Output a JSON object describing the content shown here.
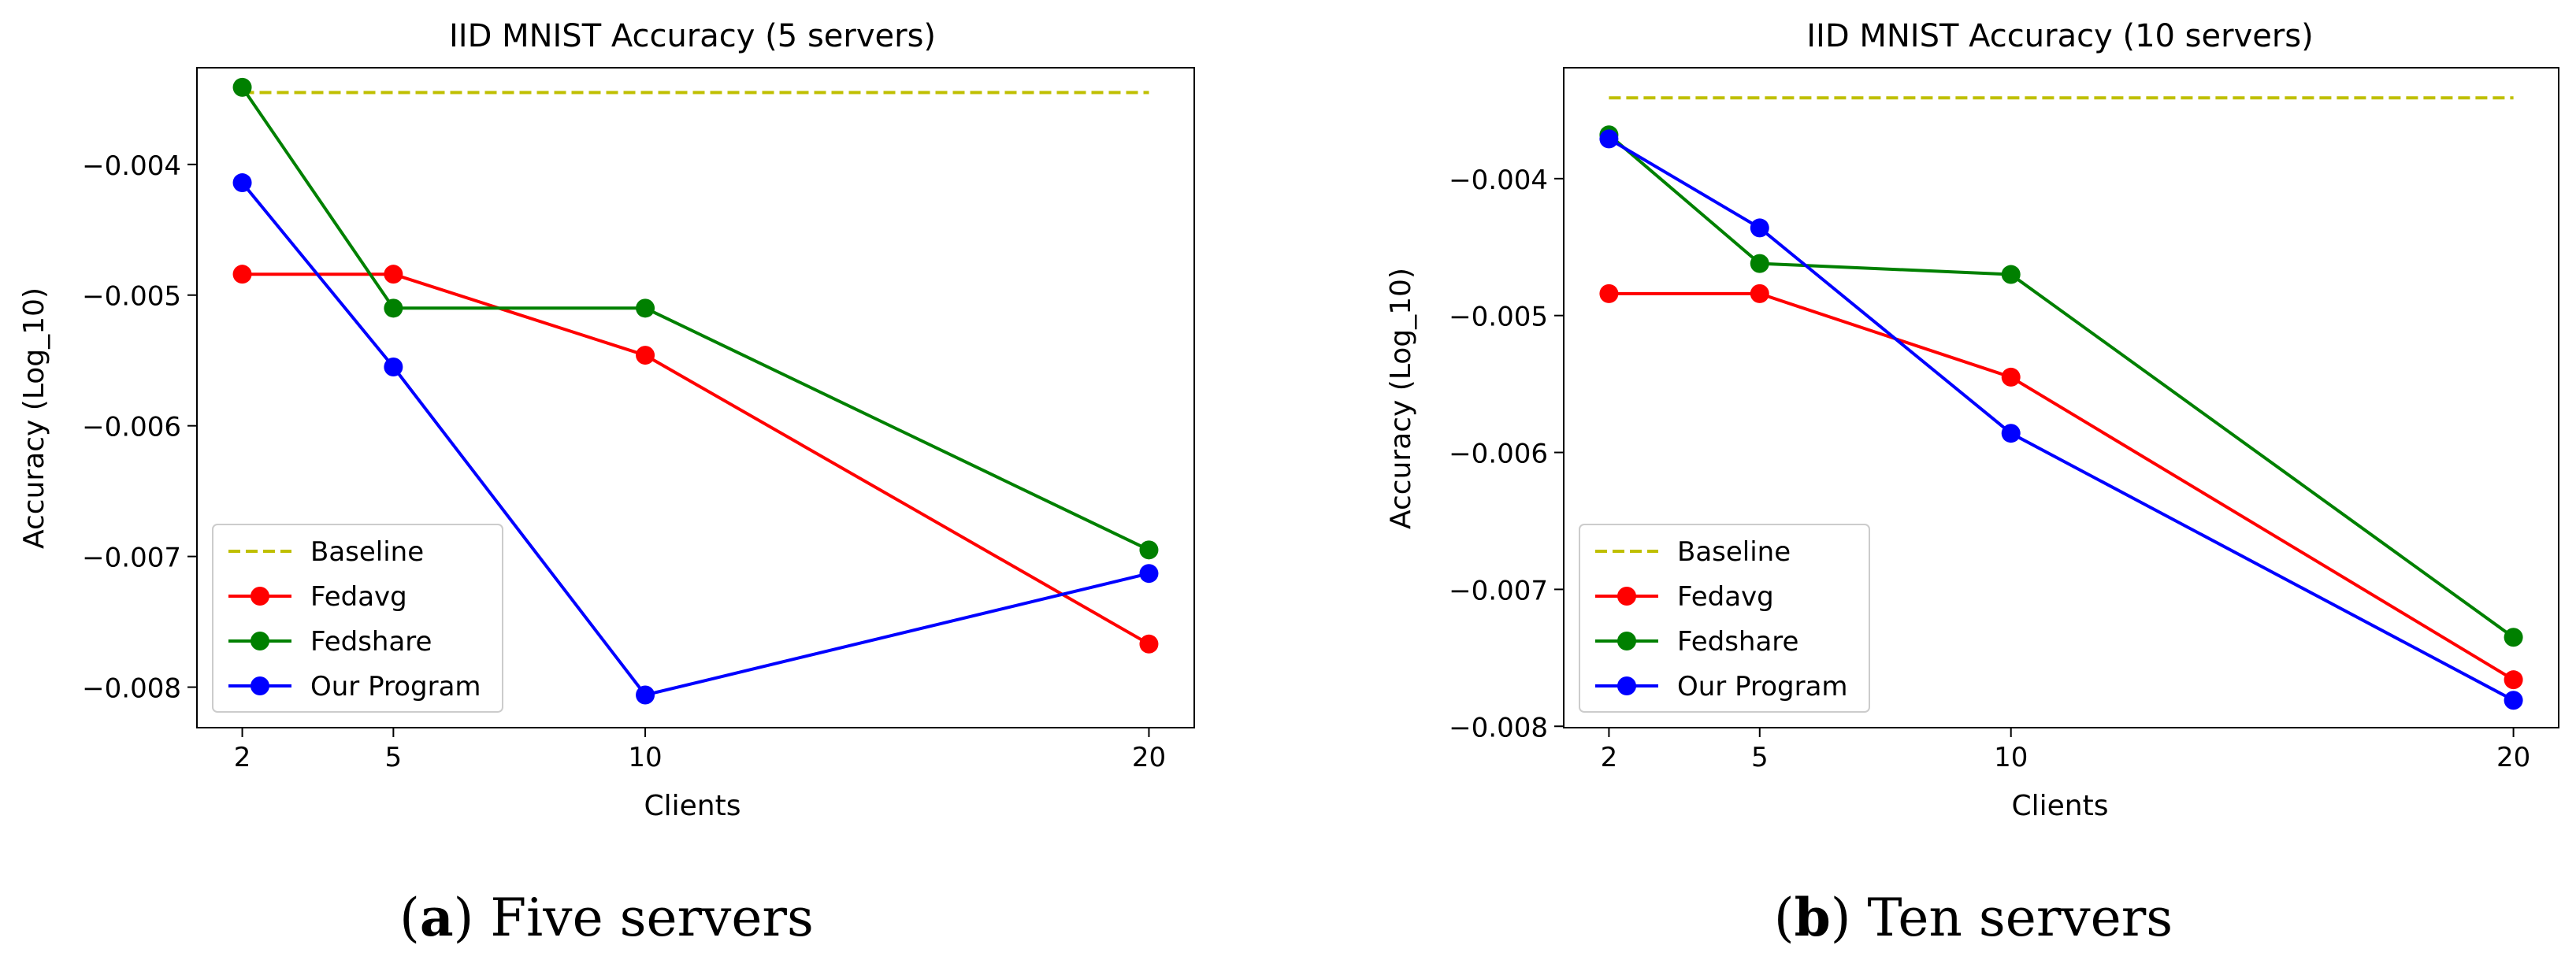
{
  "colors": {
    "baseline": "#bfbf00",
    "fedavg": "#ff0000",
    "fedshare": "#008000",
    "our_program": "#0000ff"
  },
  "chart_data": [
    {
      "type": "line",
      "title": "IID MNIST Accuracy (5 servers)",
      "xlabel": "Clients",
      "ylabel": "Accuracy (Log_10)",
      "x": [
        2,
        5,
        10,
        20
      ],
      "xticks": [
        2,
        5,
        10,
        20
      ],
      "xtick_labels": [
        "2",
        "5",
        "10",
        "20"
      ],
      "xlim": [
        1.1,
        20.9
      ],
      "yticks": [
        -0.008,
        -0.007,
        -0.006,
        -0.005,
        -0.004
      ],
      "ytick_labels": [
        "−0.008",
        "−0.007",
        "−0.006",
        "−0.005",
        "−0.004"
      ],
      "ylim": [
        -0.00831,
        -0.00326
      ],
      "grid": false,
      "legend_position": "lower-left",
      "series": [
        {
          "name": "Baseline",
          "key": "baseline",
          "values": [
            -0.00345,
            -0.00345,
            -0.00345,
            -0.00345
          ],
          "dashed": true,
          "markers": false
        },
        {
          "name": "Fedavg",
          "key": "fedavg",
          "values": [
            -0.00484,
            -0.00484,
            -0.00546,
            -0.00767
          ],
          "dashed": false,
          "markers": true
        },
        {
          "name": "Fedshare",
          "key": "fedshare",
          "values": [
            -0.00341,
            -0.0051,
            -0.0051,
            -0.00695
          ],
          "dashed": false,
          "markers": true
        },
        {
          "name": "Our Program",
          "key": "our_program",
          "values": [
            -0.00414,
            -0.00555,
            -0.00806,
            -0.00713
          ],
          "dashed": false,
          "markers": true
        }
      ]
    },
    {
      "type": "line",
      "title": "IID MNIST Accuracy (10 servers)",
      "xlabel": "Clients",
      "ylabel": "Accuracy (Log_10)",
      "x": [
        2,
        5,
        10,
        20
      ],
      "xticks": [
        2,
        5,
        10,
        20
      ],
      "xtick_labels": [
        "2",
        "5",
        "10",
        "20"
      ],
      "xlim": [
        1.1,
        20.9
      ],
      "yticks": [
        -0.008,
        -0.007,
        -0.006,
        -0.005,
        -0.004
      ],
      "ytick_labels": [
        "−0.008",
        "−0.007",
        "−0.006",
        "−0.005",
        "−0.004"
      ],
      "ylim": [
        -0.00801,
        -0.00319
      ],
      "grid": false,
      "legend_position": "lower-left",
      "series": [
        {
          "name": "Baseline",
          "key": "baseline",
          "values": [
            -0.00341,
            -0.00341,
            -0.00341,
            -0.00341
          ],
          "dashed": true,
          "markers": false
        },
        {
          "name": "Fedavg",
          "key": "fedavg",
          "values": [
            -0.00484,
            -0.00484,
            -0.00545,
            -0.00766
          ],
          "dashed": false,
          "markers": true
        },
        {
          "name": "Fedshare",
          "key": "fedshare",
          "values": [
            -0.00368,
            -0.00462,
            -0.0047,
            -0.00735
          ],
          "dashed": false,
          "markers": true
        },
        {
          "name": "Our Program",
          "key": "our_program",
          "values": [
            -0.00371,
            -0.00436,
            -0.00586,
            -0.00781
          ],
          "dashed": false,
          "markers": true
        }
      ]
    }
  ],
  "captions": [
    {
      "letter": "a",
      "text": "Five servers"
    },
    {
      "letter": "b",
      "text": "Ten servers"
    }
  ]
}
